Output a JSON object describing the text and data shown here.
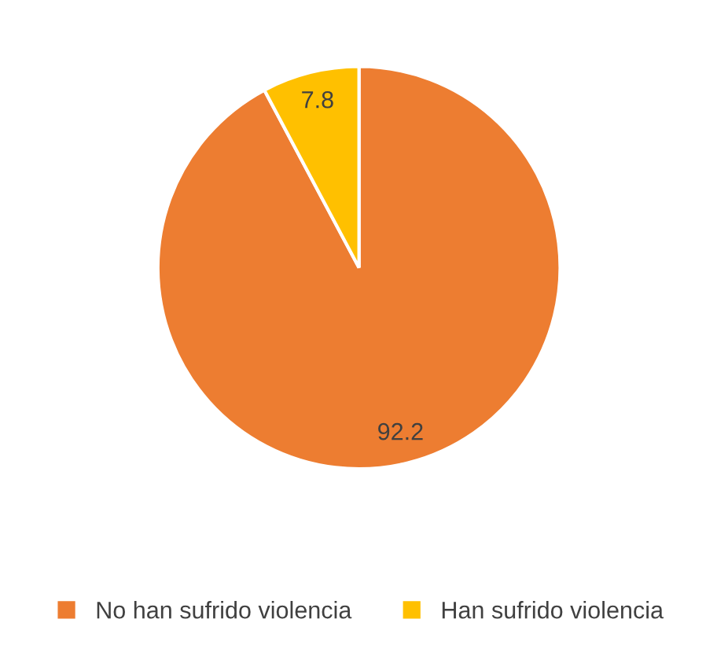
{
  "chart_data": {
    "type": "pie",
    "categories": [
      "No han sufrido violencia",
      "Han sufrido violencia"
    ],
    "values": [
      92.2,
      7.8
    ],
    "colors": [
      "#ed7d31",
      "#ffc000"
    ],
    "data_labels": true,
    "legend": "bottom"
  }
}
